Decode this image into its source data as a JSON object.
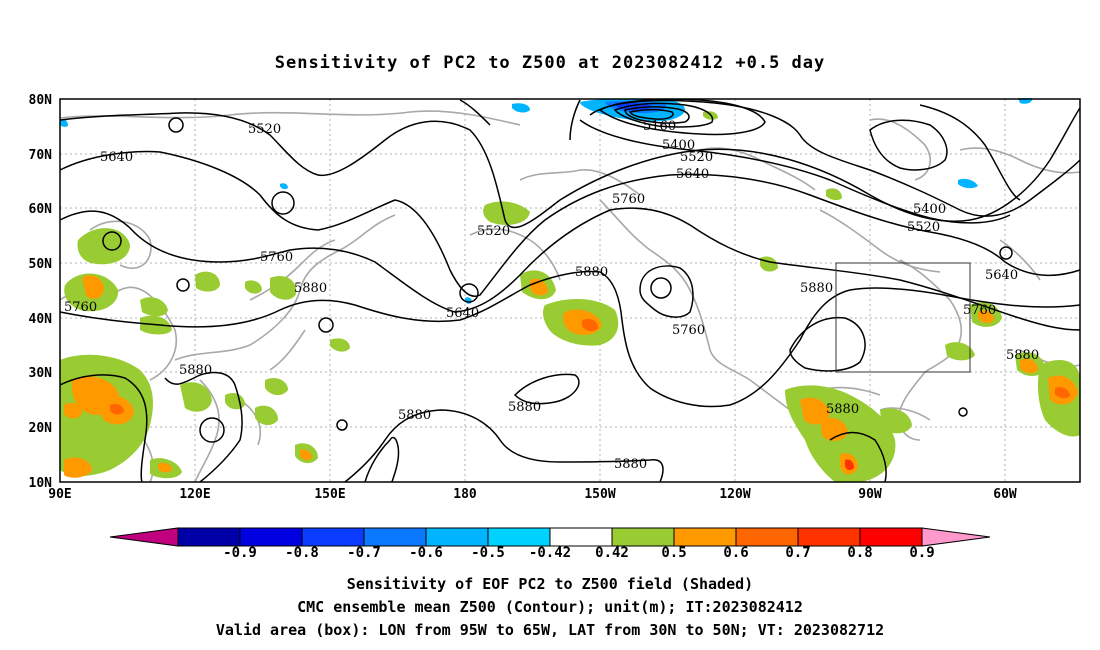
{
  "title": "Sensitivity of PC2 to Z500 at 2023082412 +0.5 day",
  "axes": {
    "lat_labels": [
      "80N",
      "70N",
      "60N",
      "50N",
      "40N",
      "30N",
      "20N",
      "10N"
    ],
    "lon_labels": [
      "90E",
      "120E",
      "150E",
      "180",
      "150W",
      "120W",
      "90W",
      "60W"
    ]
  },
  "contour_labels": [
    "5520",
    "5640",
    "5760",
    "5880",
    "5160",
    "5400",
    "5520",
    "5640",
    "5760",
    "5520",
    "5880",
    "5640",
    "5760",
    "5880",
    "5400",
    "5520",
    "5640",
    "5760",
    "5880",
    "5880",
    "5880",
    "5880",
    "5880",
    "5880"
  ],
  "colorbar": {
    "labels": [
      "-0.9",
      "-0.8",
      "-0.7",
      "-0.6",
      "-0.5",
      "-0.42",
      "0.42",
      "0.5",
      "0.6",
      "0.7",
      "0.8",
      "0.9"
    ],
    "colors": [
      "#c0007f",
      "#0000a8",
      "#0000e0",
      "#0a3cff",
      "#0a78ff",
      "#00b4ff",
      "#00d2ff",
      "#ffffff",
      "#99cc33",
      "#ff9900",
      "#ff6600",
      "#ff3300",
      "#ff0000",
      "#ff99cc"
    ]
  },
  "valid_box": {
    "lon_from": "95W",
    "lon_to": "65W",
    "lat_from": "30N",
    "lat_to": "50N"
  },
  "caption": {
    "line1": "Sensitivity of EOF PC2 to Z500 field (Shaded)",
    "line2": "CMC ensemble mean Z500 (Contour); unit(m); IT:2023082412",
    "line3": "Valid area (box): LON from 95W to 65W, LAT from 30N to 50N; VT: 2023082712"
  }
}
